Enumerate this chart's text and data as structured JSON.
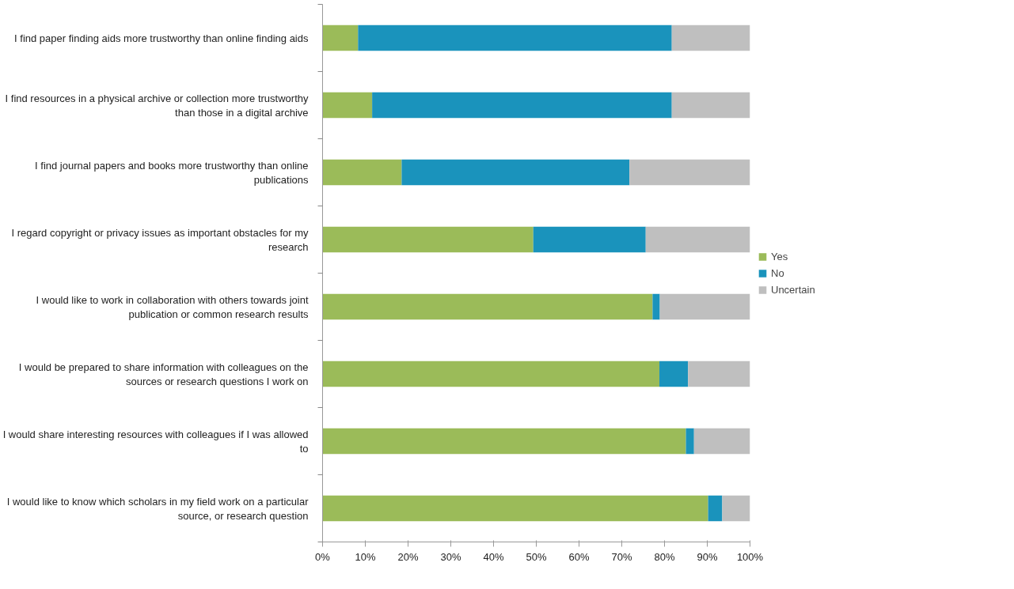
{
  "chart_data": {
    "type": "bar",
    "orientation": "horizontal",
    "stacked": true,
    "categories": [
      "I find paper finding aids more trustworthy than online finding aids",
      "I find resources in a physical archive or collection more trustworthy than those in a digital archive",
      "I find journal papers and books more trustworthy than online publications",
      "I regard copyright or privacy issues as important obstacles for my research",
      "I would like to work in collaboration with others towards joint publication or common research results",
      "I would be prepared to share information with colleagues on the sources or research questions I work on",
      "I would share interesting resources with colleagues if I was allowed to",
      "I would like to know which scholars in my field work on a particular source, or research question"
    ],
    "series": [
      {
        "name": "Yes",
        "color": "#9bbb59",
        "values": [
          8.3,
          11.6,
          18.5,
          49.3,
          77.2,
          78.8,
          85.0,
          90.2
        ]
      },
      {
        "name": "No",
        "color": "#1a93bc",
        "values": [
          73.4,
          70.1,
          53.3,
          26.3,
          1.7,
          6.7,
          1.9,
          3.3
        ]
      },
      {
        "name": "Uncertain",
        "color": "#bfbfbf",
        "values": [
          18.3,
          18.3,
          28.2,
          24.4,
          21.1,
          14.5,
          13.1,
          6.5
        ]
      }
    ],
    "xlim": [
      0,
      100
    ],
    "xticks": [
      {
        "value": 0,
        "label": "0%"
      },
      {
        "value": 10,
        "label": "10%"
      },
      {
        "value": 20,
        "label": "20%"
      },
      {
        "value": 30,
        "label": "30%"
      },
      {
        "value": 40,
        "label": "40%"
      },
      {
        "value": 50,
        "label": "50%"
      },
      {
        "value": 60,
        "label": "60%"
      },
      {
        "value": 70,
        "label": "70%"
      },
      {
        "value": 80,
        "label": "80%"
      },
      {
        "value": 90,
        "label": "90%"
      },
      {
        "value": 100,
        "label": "100%"
      }
    ],
    "grid": false,
    "legend": "right"
  }
}
